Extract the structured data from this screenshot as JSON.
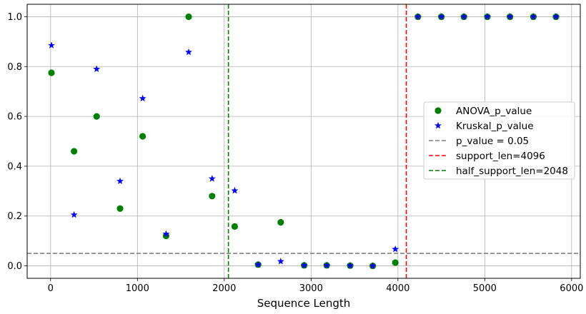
{
  "chart_data": {
    "type": "scatter",
    "title": "",
    "xlabel": "Sequence Length",
    "ylabel": "",
    "xlim": [
      -270,
      6100
    ],
    "ylim": [
      -0.05,
      1.05
    ],
    "xticks": [
      0,
      1000,
      2000,
      3000,
      4000,
      5000,
      6000
    ],
    "yticks": [
      0.0,
      0.2,
      0.4,
      0.6,
      0.8,
      1.0
    ],
    "xtick_labels": [
      "0",
      "1000",
      "2000",
      "3000",
      "4000",
      "5000",
      "6000"
    ],
    "ytick_labels": [
      "0.0",
      "0.2",
      "0.4",
      "0.6",
      "0.8",
      "1.0"
    ],
    "grid": true,
    "legend_position": "center-right",
    "series": [
      {
        "name": "ANOVA_p_value",
        "marker": "circle",
        "color": "#008000",
        "points": [
          {
            "x": 10,
            "y": 0.775
          },
          {
            "x": 270,
            "y": 0.46
          },
          {
            "x": 530,
            "y": 0.6
          },
          {
            "x": 800,
            "y": 0.23
          },
          {
            "x": 1060,
            "y": 0.52
          },
          {
            "x": 1330,
            "y": 0.12
          },
          {
            "x": 1590,
            "y": 1.0
          },
          {
            "x": 1860,
            "y": 0.28
          },
          {
            "x": 2120,
            "y": 0.158
          },
          {
            "x": 2390,
            "y": 0.005
          },
          {
            "x": 2650,
            "y": 0.175
          },
          {
            "x": 2920,
            "y": 0.002
          },
          {
            "x": 3180,
            "y": 0.002
          },
          {
            "x": 3450,
            "y": 0.001
          },
          {
            "x": 3710,
            "y": 0.0
          },
          {
            "x": 3970,
            "y": 0.013
          },
          {
            "x": 4230,
            "y": 1.0
          },
          {
            "x": 4500,
            "y": 1.0
          },
          {
            "x": 4760,
            "y": 1.0
          },
          {
            "x": 5030,
            "y": 1.0
          },
          {
            "x": 5290,
            "y": 1.0
          },
          {
            "x": 5560,
            "y": 1.0
          },
          {
            "x": 5820,
            "y": 1.0
          }
        ]
      },
      {
        "name": "Kruskal_p_value",
        "marker": "star",
        "color": "#0000ff",
        "points": [
          {
            "x": 10,
            "y": 0.885
          },
          {
            "x": 270,
            "y": 0.205
          },
          {
            "x": 530,
            "y": 0.79
          },
          {
            "x": 800,
            "y": 0.34
          },
          {
            "x": 1060,
            "y": 0.672
          },
          {
            "x": 1330,
            "y": 0.128
          },
          {
            "x": 1590,
            "y": 0.858
          },
          {
            "x": 1860,
            "y": 0.35
          },
          {
            "x": 2120,
            "y": 0.302
          },
          {
            "x": 2390,
            "y": 0.005
          },
          {
            "x": 2650,
            "y": 0.018
          },
          {
            "x": 2920,
            "y": 0.002
          },
          {
            "x": 3180,
            "y": 0.002
          },
          {
            "x": 3450,
            "y": 0.001
          },
          {
            "x": 3710,
            "y": 0.0
          },
          {
            "x": 3970,
            "y": 0.067
          },
          {
            "x": 4230,
            "y": 1.0
          },
          {
            "x": 4500,
            "y": 1.0
          },
          {
            "x": 4760,
            "y": 1.0
          },
          {
            "x": 5030,
            "y": 1.0
          },
          {
            "x": 5290,
            "y": 1.0
          },
          {
            "x": 5560,
            "y": 1.0
          },
          {
            "x": 5820,
            "y": 1.0
          }
        ]
      }
    ],
    "reference_lines": [
      {
        "name": "p_value = 0.05",
        "orientation": "horizontal",
        "value": 0.05,
        "color": "#808080",
        "style": "dashed"
      },
      {
        "name": "support_len=4096",
        "orientation": "vertical",
        "value": 4096,
        "color": "#ff0000",
        "style": "dashed"
      },
      {
        "name": "half_support_len=2048",
        "orientation": "vertical",
        "value": 2048,
        "color": "#008000",
        "style": "dashed"
      }
    ],
    "legend": [
      "ANOVA_p_value",
      "Kruskal_p_value",
      "p_value = 0.05",
      "support_len=4096",
      "half_support_len=2048"
    ]
  }
}
